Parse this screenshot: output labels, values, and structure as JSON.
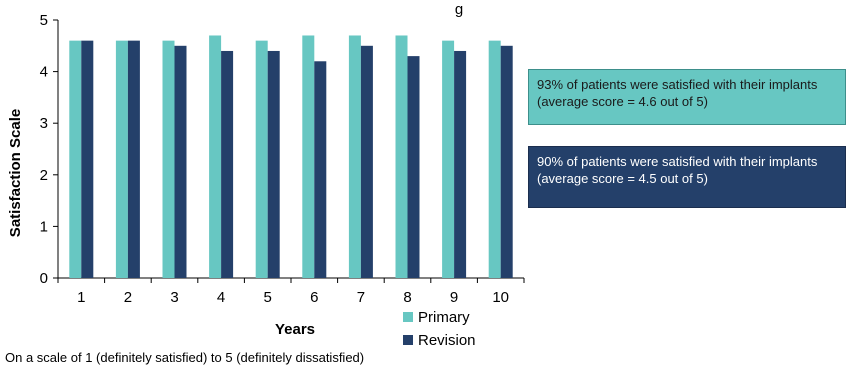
{
  "chart_data": {
    "type": "bar",
    "title_fragment": "g",
    "xlabel": "Years",
    "ylabel": "Satisfaction Scale",
    "ylim": [
      0,
      5
    ],
    "yticks": [
      0,
      1,
      2,
      3,
      4,
      5
    ],
    "categories": [
      "1",
      "2",
      "3",
      "4",
      "5",
      "6",
      "7",
      "8",
      "9",
      "10"
    ],
    "series": [
      {
        "name": "Primary",
        "color": "#67c7c2",
        "values": [
          4.6,
          4.6,
          4.6,
          4.7,
          4.6,
          4.7,
          4.7,
          4.7,
          4.6,
          4.6
        ]
      },
      {
        "name": "Revision",
        "color": "#24406a",
        "values": [
          4.6,
          4.6,
          4.5,
          4.4,
          4.4,
          4.2,
          4.5,
          4.3,
          4.4,
          4.5
        ]
      }
    ],
    "legend_position": "bottom-right",
    "grid": false
  },
  "callouts": {
    "primary": "93% of patients were satisfied with their implants (average score = 4.6 out of 5)",
    "revision": "90% of patients were satisfied with their implants (average score = 4.5 out of 5)"
  },
  "footnote": "On a scale of 1 (definitely satisfied) to 5 (definitely dissatisfied)"
}
